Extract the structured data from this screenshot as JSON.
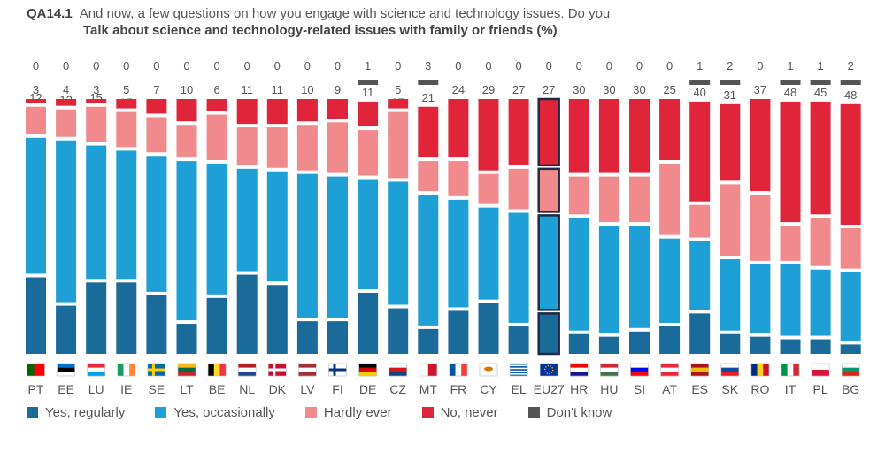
{
  "question": {
    "id": "QA14.1",
    "text": "And now, a few questions on how you engage with science and technology issues. Do you",
    "subtitle": "Talk about science and technology-related issues with family or friends  (%)"
  },
  "colors": {
    "yes_regularly": "#1a6a9a",
    "yes_occasionally": "#1e9fd6",
    "hardly_ever": "#f08a8c",
    "no_never": "#e0253b",
    "dont_know": "#555555",
    "highlight_border": "#1f2a44"
  },
  "legend": [
    {
      "key": "yes_regularly",
      "label": "Yes, regularly"
    },
    {
      "key": "yes_occasionally",
      "label": "Yes, occasionally"
    },
    {
      "key": "hardly_ever",
      "label": "Hardly ever"
    },
    {
      "key": "no_never",
      "label": "No, never"
    },
    {
      "key": "dont_know",
      "label": "Don't know"
    }
  ],
  "chart_data": {
    "type": "bar",
    "stacked": true,
    "orientation": "vertical",
    "categories": [
      "PT",
      "EE",
      "LU",
      "IE",
      "SE",
      "LT",
      "BE",
      "NL",
      "DK",
      "LV",
      "FI",
      "DE",
      "CZ",
      "MT",
      "FR",
      "CY",
      "EL",
      "EU27",
      "HR",
      "HU",
      "SI",
      "AT",
      "ES",
      "SK",
      "RO",
      "IT",
      "PL",
      "BG"
    ],
    "highlight": "EU27",
    "series": [
      {
        "name": "Yes, regularly",
        "key": "yes_regularly",
        "values": [
          31,
          20,
          29,
          29,
          24,
          13,
          23,
          32,
          28,
          14,
          14,
          25,
          19,
          11,
          18,
          21,
          12,
          17,
          9,
          8,
          10,
          12,
          17,
          9,
          8,
          7,
          7,
          5
        ]
      },
      {
        "name": "Yes, occasionally",
        "key": "yes_occasionally",
        "values": [
          54,
          64,
          53,
          51,
          54,
          63,
          52,
          41,
          44,
          57,
          56,
          44,
          49,
          52,
          43,
          37,
          44,
          38,
          45,
          43,
          41,
          34,
          28,
          29,
          28,
          29,
          27,
          28
        ]
      },
      {
        "name": "Hardly ever",
        "key": "hardly_ever",
        "values": [
          12,
          12,
          15,
          15,
          15,
          14,
          19,
          16,
          17,
          19,
          21,
          19,
          27,
          13,
          15,
          13,
          17,
          18,
          16,
          19,
          19,
          29,
          14,
          29,
          27,
          15,
          20,
          17
        ]
      },
      {
        "name": "No, never",
        "key": "no_never",
        "values": [
          3,
          4,
          3,
          5,
          7,
          10,
          6,
          11,
          11,
          10,
          9,
          11,
          5,
          21,
          24,
          29,
          27,
          27,
          30,
          30,
          30,
          25,
          40,
          31,
          37,
          48,
          45,
          48
        ]
      },
      {
        "name": "Don't know",
        "key": "dont_know",
        "values": [
          0,
          0,
          0,
          0,
          0,
          0,
          0,
          0,
          0,
          0,
          0,
          1,
          0,
          3,
          0,
          0,
          0,
          0,
          0,
          0,
          0,
          0,
          1,
          2,
          0,
          1,
          1,
          2
        ]
      }
    ]
  }
}
